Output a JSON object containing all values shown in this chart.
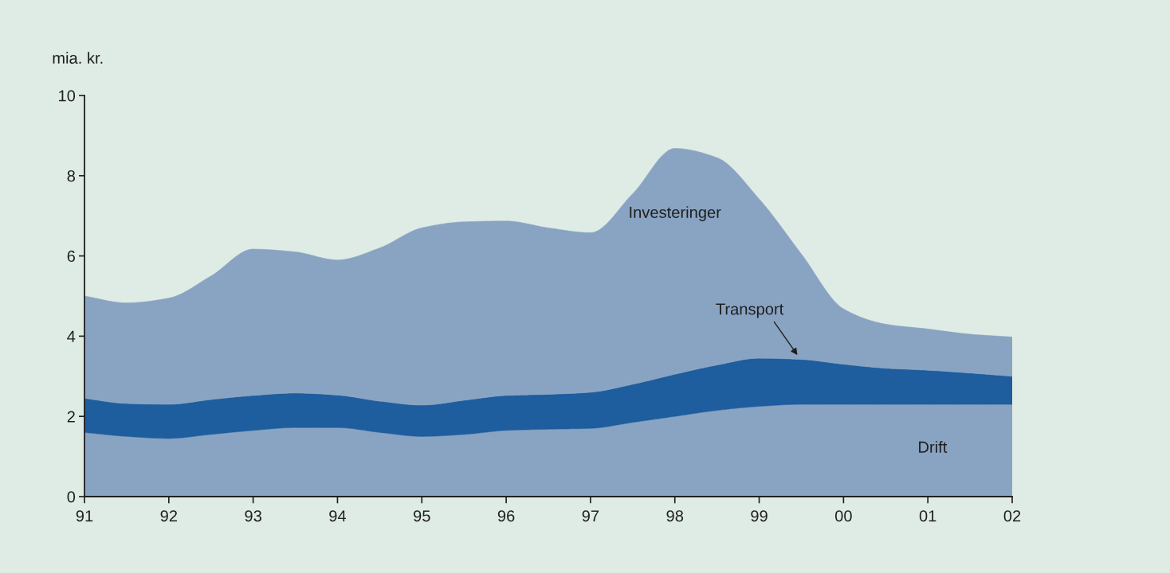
{
  "chart_data": {
    "type": "area",
    "stacked": true,
    "ylabel": "mia. kr.",
    "x": [
      1991,
      1991.5,
      1992,
      1992.5,
      1993,
      1993.5,
      1994,
      1994.5,
      1995,
      1995.5,
      1996,
      1996.5,
      1997,
      1997.5,
      1998,
      1998.5,
      1999,
      1999.5,
      2000,
      2000.5,
      2001,
      2001.5,
      2002
    ],
    "xlim": [
      1991,
      2002
    ],
    "xticks": [
      {
        "value": 1991,
        "label": "91"
      },
      {
        "value": 1992,
        "label": "92"
      },
      {
        "value": 1993,
        "label": "93"
      },
      {
        "value": 1994,
        "label": "94"
      },
      {
        "value": 1995,
        "label": "95"
      },
      {
        "value": 1996,
        "label": "96"
      },
      {
        "value": 1997,
        "label": "97"
      },
      {
        "value": 1998,
        "label": "98"
      },
      {
        "value": 1999,
        "label": "99"
      },
      {
        "value": 2000,
        "label": "00"
      },
      {
        "value": 2001,
        "label": "01"
      },
      {
        "value": 2002,
        "label": "02"
      }
    ],
    "ylim": [
      0,
      10
    ],
    "yticks": [
      0,
      2,
      4,
      6,
      8,
      10
    ],
    "series": [
      {
        "name": "Drift",
        "color": "#89a4c2",
        "values": [
          1.6,
          1.5,
          1.45,
          1.55,
          1.65,
          1.72,
          1.72,
          1.6,
          1.5,
          1.55,
          1.65,
          1.68,
          1.7,
          1.85,
          2.0,
          2.15,
          2.25,
          2.3,
          2.3,
          2.3,
          2.3,
          2.3,
          2.3
        ]
      },
      {
        "name": "Transport",
        "color": "#1e5d9e",
        "values": [
          0.85,
          0.82,
          0.85,
          0.87,
          0.87,
          0.86,
          0.81,
          0.78,
          0.78,
          0.85,
          0.87,
          0.87,
          0.9,
          0.95,
          1.05,
          1.13,
          1.2,
          1.12,
          1.0,
          0.9,
          0.85,
          0.78,
          0.7
        ]
      },
      {
        "name": "Investeringer",
        "color": "#89a4c2",
        "values": [
          2.55,
          2.51,
          2.65,
          3.08,
          3.65,
          3.52,
          3.37,
          3.82,
          4.42,
          4.45,
          4.35,
          4.15,
          3.98,
          4.75,
          5.63,
          5.17,
          3.97,
          2.63,
          1.38,
          1.1,
          1.03,
          0.97,
          0.98
        ]
      }
    ]
  }
}
